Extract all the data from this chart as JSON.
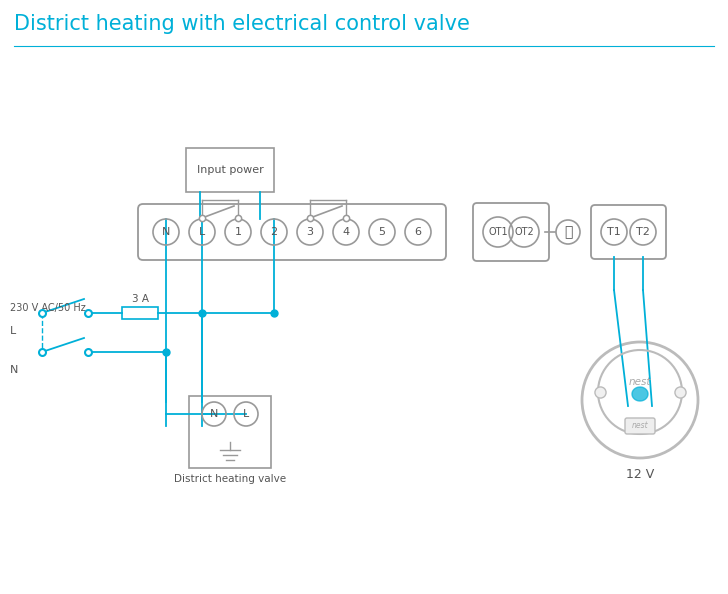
{
  "title": "District heating with electrical control valve",
  "title_color": "#00b0d8",
  "line_color": "#00b0d8",
  "component_color": "#999999",
  "text_color": "#555555",
  "bg_color": "#ffffff",
  "terminal_labels": [
    "N",
    "L",
    "1",
    "2",
    "3",
    "4",
    "5",
    "6"
  ],
  "input_power_label": "Input power",
  "district_heating_label": "District heating valve",
  "twelve_v_label": "12 V",
  "ac_label": "230 V AC/50 Hz",
  "l_label": "L",
  "n_label": "N",
  "fuse_label": "3 A",
  "nest_label": "nest"
}
